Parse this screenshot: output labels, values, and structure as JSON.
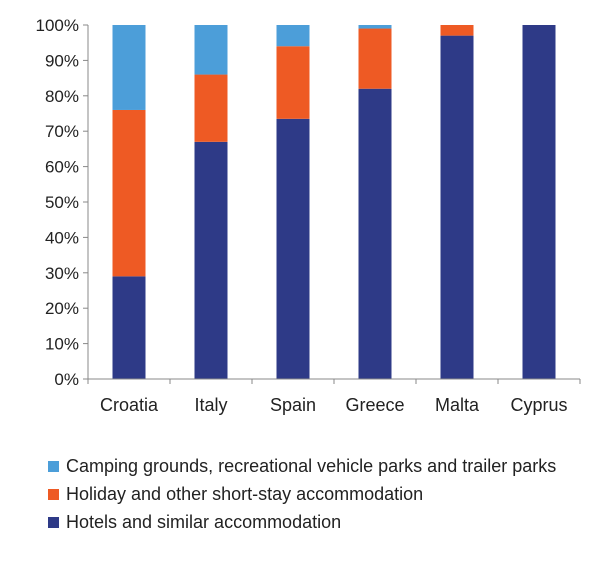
{
  "chart_data": {
    "type": "bar",
    "stacked": true,
    "categories": [
      "Croatia",
      "Italy",
      "Spain",
      "Greece",
      "Malta",
      "Cyprus"
    ],
    "ylim": [
      0,
      100
    ],
    "yticks": [
      "0%",
      "10%",
      "20%",
      "30%",
      "40%",
      "50%",
      "60%",
      "70%",
      "80%",
      "90%",
      "100%"
    ],
    "series": [
      {
        "name": "Hotels and similar accommodation",
        "color": "#2e3a87",
        "values": [
          29,
          67,
          73.5,
          82,
          97,
          100
        ]
      },
      {
        "name": "Holiday and other short-stay accommodation",
        "color": "#ee5a24",
        "values": [
          47,
          19,
          20.5,
          17,
          3,
          0
        ]
      },
      {
        "name": "Camping grounds, recreational vehicle parks and trailer parks",
        "color": "#4c9ed9",
        "values": [
          24,
          14,
          6,
          1,
          0,
          0
        ]
      }
    ],
    "legend": [
      "Camping grounds, recreational vehicle parks and trailer parks",
      "Holiday and other short-stay accommodation",
      "Hotels and similar accommodation"
    ],
    "grid": false,
    "legend_position": "bottom"
  }
}
